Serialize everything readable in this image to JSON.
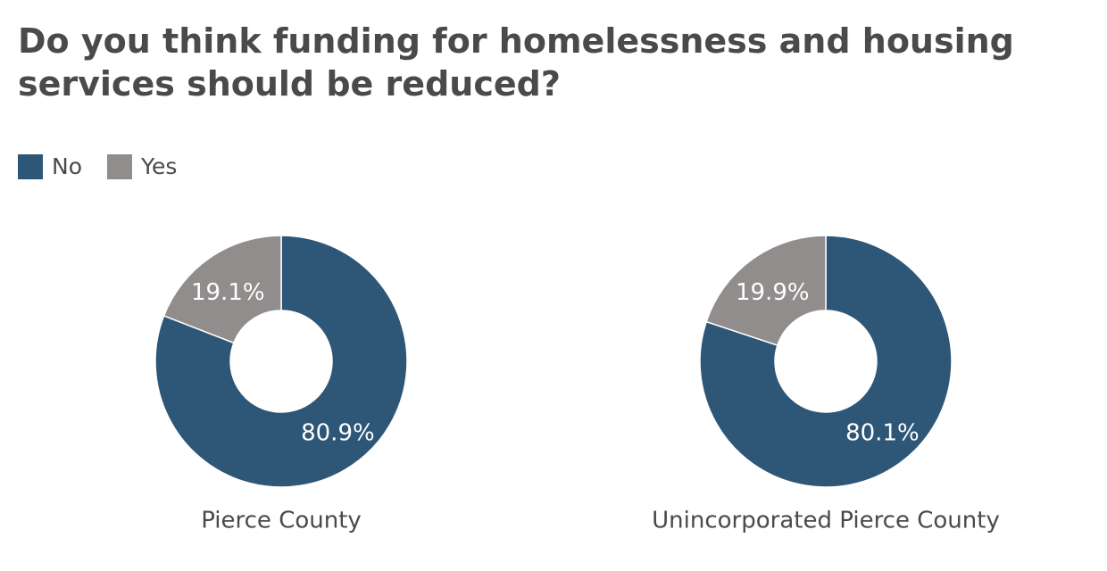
{
  "title": "Do you think funding for homelessness and housing services should be reduced?",
  "colors": {
    "no": "#2e5677",
    "yes": "#908d8c"
  },
  "legend": [
    {
      "label": "No",
      "color": "#2e5677"
    },
    {
      "label": "Yes",
      "color": "#908d8c"
    }
  ],
  "chart_data": {
    "type": "pie",
    "subtype": "donut",
    "title": "Do you think funding for homelessness and housing services should be reduced?",
    "legend_position": "top-left",
    "categories": [
      "No",
      "Yes"
    ],
    "charts": [
      {
        "name": "Pierce County",
        "slices": [
          {
            "label": "No",
            "value": 80.9,
            "display": "80.9%"
          },
          {
            "label": "Yes",
            "value": 19.1,
            "display": "19.1%"
          }
        ]
      },
      {
        "name": "Unincorporated Pierce County",
        "slices": [
          {
            "label": "No",
            "value": 80.1,
            "display": "80.1%"
          },
          {
            "label": "Yes",
            "value": 19.9,
            "display": "19.9%"
          }
        ]
      }
    ]
  }
}
